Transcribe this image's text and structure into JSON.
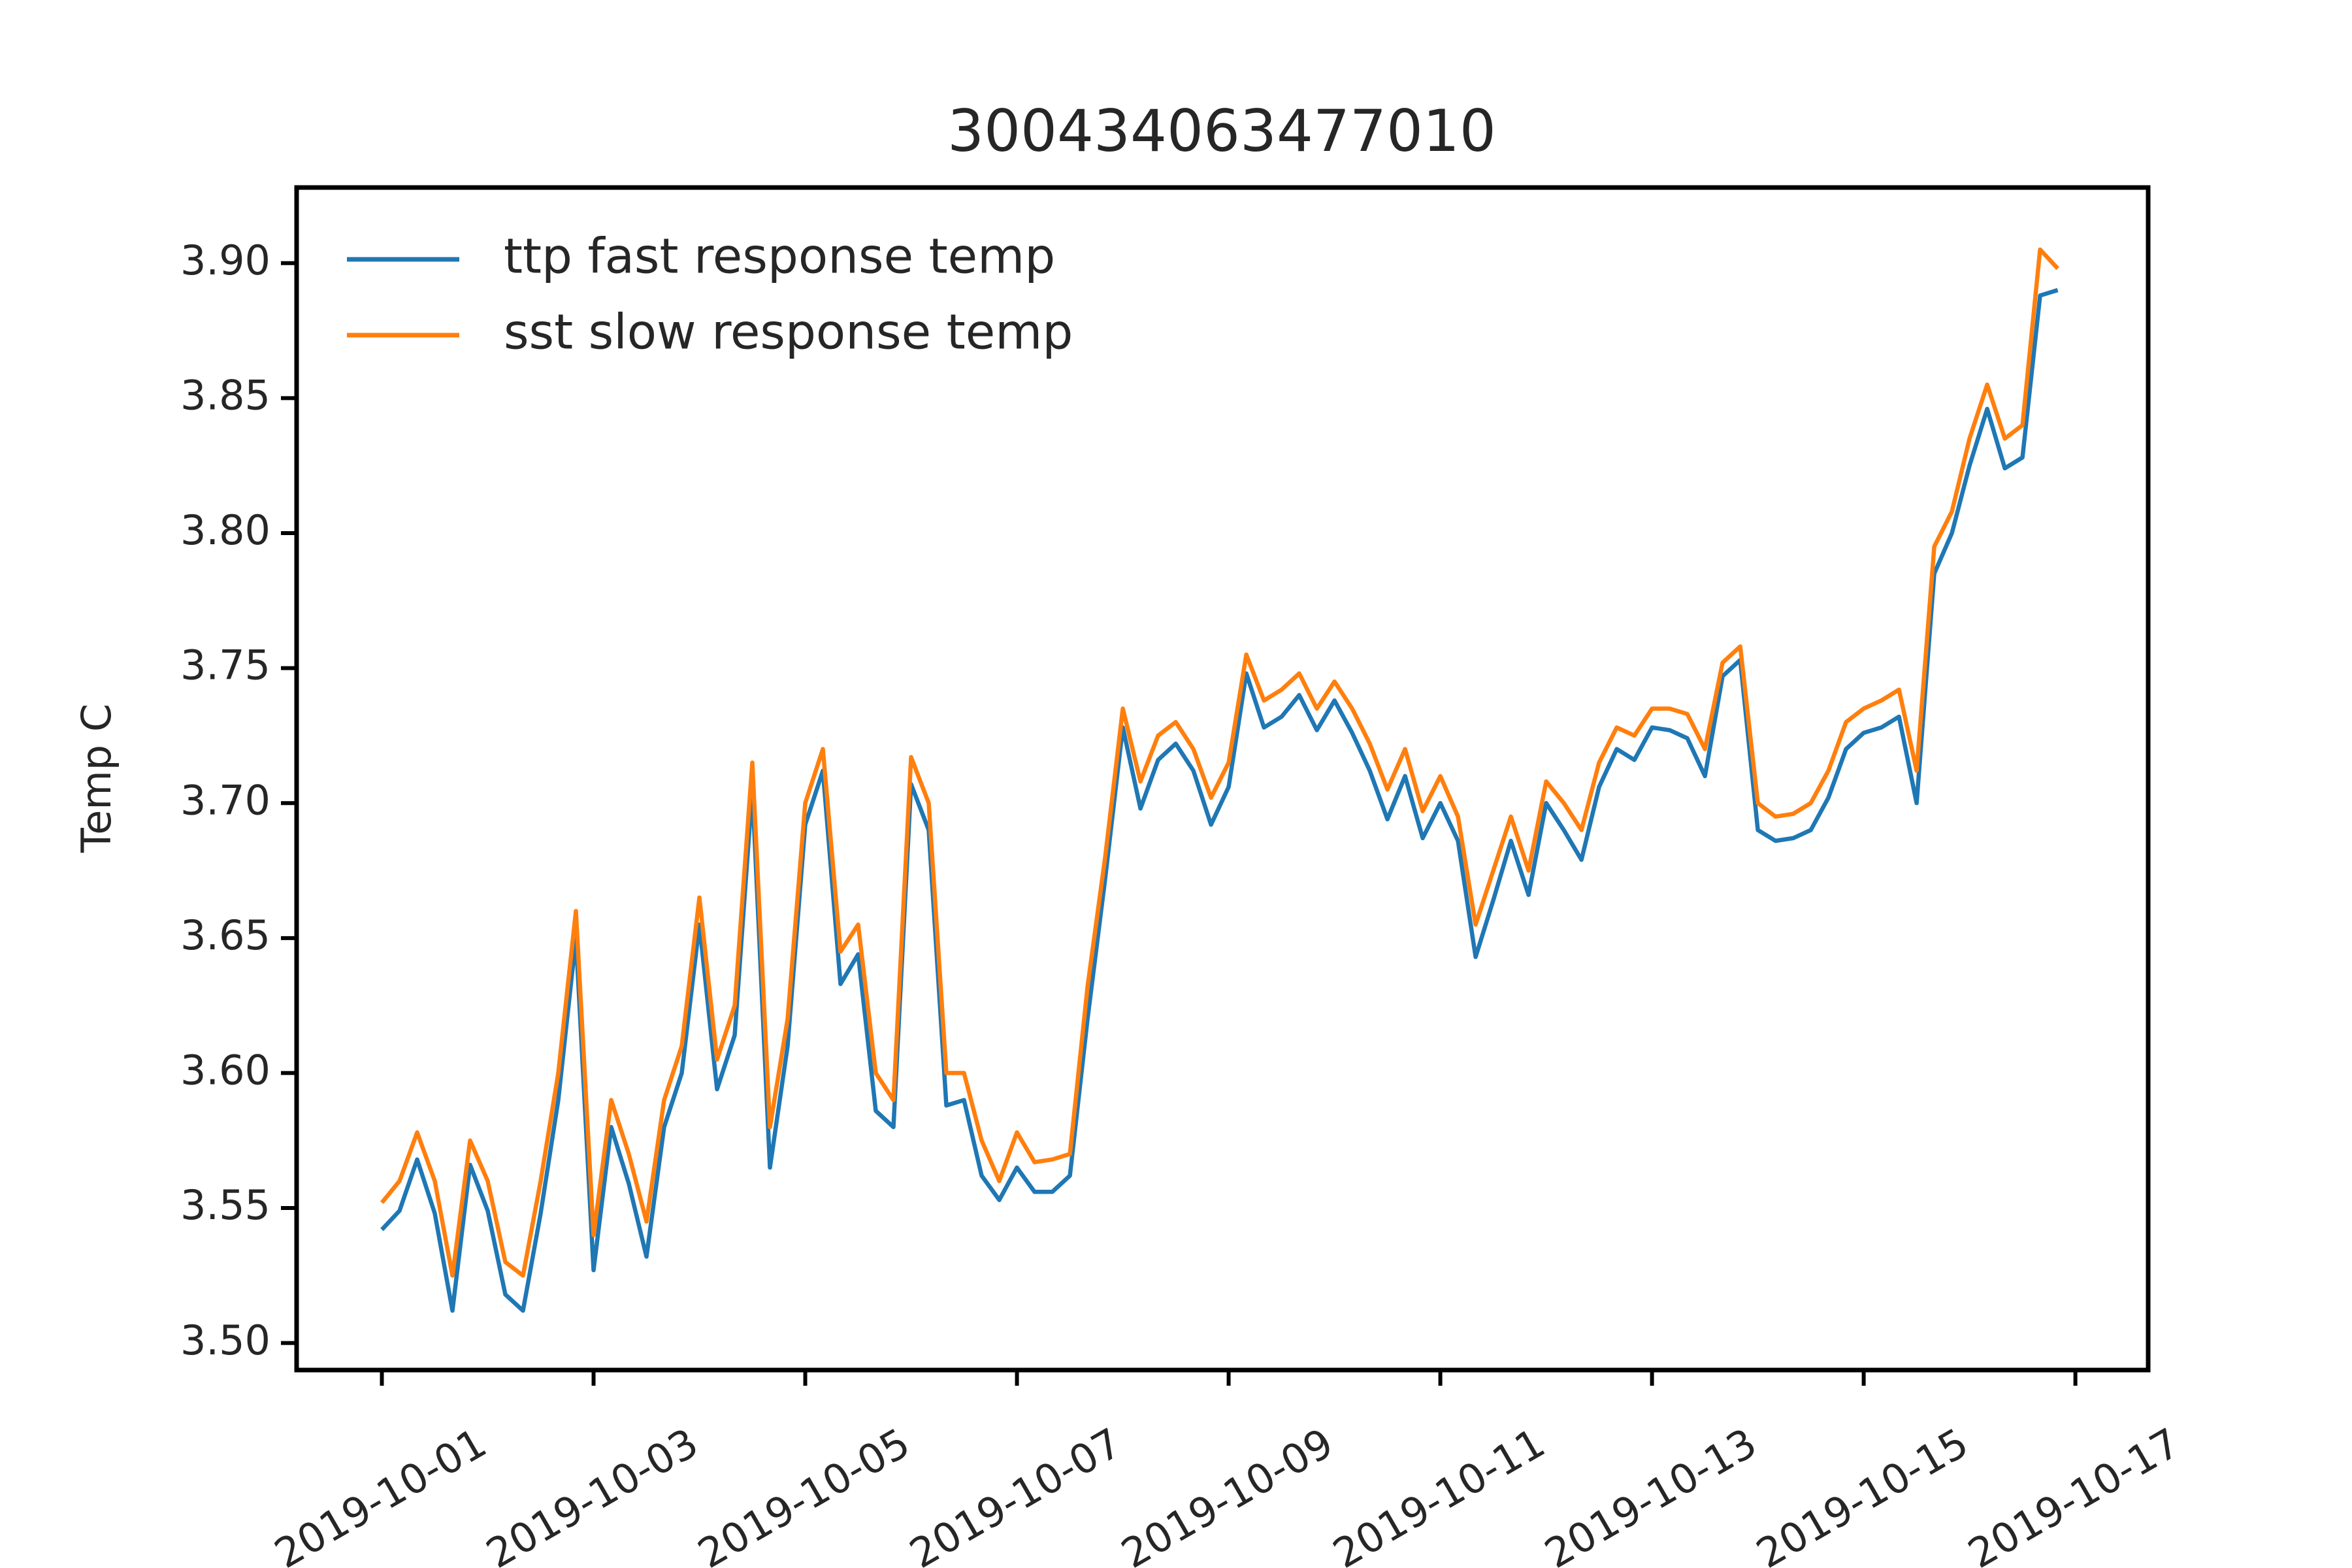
{
  "chart_data": {
    "type": "line",
    "title": "300434063477010",
    "y_label": "Temp C",
    "legend": "upper left",
    "x": [
      "2019-10-01T00:00",
      "2019-10-01T04:00",
      "2019-10-01T08:00",
      "2019-10-01T12:00",
      "2019-10-01T16:00",
      "2019-10-01T20:00",
      "2019-10-02T00:00",
      "2019-10-02T04:00",
      "2019-10-02T08:00",
      "2019-10-02T12:00",
      "2019-10-02T16:00",
      "2019-10-02T20:00",
      "2019-10-03T00:00",
      "2019-10-03T04:00",
      "2019-10-03T08:00",
      "2019-10-03T12:00",
      "2019-10-03T16:00",
      "2019-10-03T20:00",
      "2019-10-04T00:00",
      "2019-10-04T04:00",
      "2019-10-04T08:00",
      "2019-10-04T12:00",
      "2019-10-04T16:00",
      "2019-10-04T20:00",
      "2019-10-05T00:00",
      "2019-10-05T04:00",
      "2019-10-05T08:00",
      "2019-10-05T12:00",
      "2019-10-05T16:00",
      "2019-10-05T20:00",
      "2019-10-06T00:00",
      "2019-10-06T04:00",
      "2019-10-06T08:00",
      "2019-10-06T12:00",
      "2019-10-06T16:00",
      "2019-10-06T20:00",
      "2019-10-07T00:00",
      "2019-10-07T04:00",
      "2019-10-07T08:00",
      "2019-10-07T12:00",
      "2019-10-07T16:00",
      "2019-10-07T20:00",
      "2019-10-08T00:00",
      "2019-10-08T04:00",
      "2019-10-08T08:00",
      "2019-10-08T12:00",
      "2019-10-08T16:00",
      "2019-10-08T20:00",
      "2019-10-09T00:00",
      "2019-10-09T04:00",
      "2019-10-09T08:00",
      "2019-10-09T12:00",
      "2019-10-09T16:00",
      "2019-10-09T20:00",
      "2019-10-10T00:00",
      "2019-10-10T04:00",
      "2019-10-10T08:00",
      "2019-10-10T12:00",
      "2019-10-10T16:00",
      "2019-10-10T20:00",
      "2019-10-11T00:00",
      "2019-10-11T04:00",
      "2019-10-11T08:00",
      "2019-10-11T12:00",
      "2019-10-11T16:00",
      "2019-10-11T20:00",
      "2019-10-12T00:00",
      "2019-10-12T04:00",
      "2019-10-12T08:00",
      "2019-10-12T12:00",
      "2019-10-12T16:00",
      "2019-10-12T20:00",
      "2019-10-13T00:00",
      "2019-10-13T04:00",
      "2019-10-13T08:00",
      "2019-10-13T12:00",
      "2019-10-13T16:00",
      "2019-10-13T20:00",
      "2019-10-14T00:00",
      "2019-10-14T04:00",
      "2019-10-14T08:00",
      "2019-10-14T12:00",
      "2019-10-14T16:00",
      "2019-10-14T20:00",
      "2019-10-15T00:00",
      "2019-10-15T04:00",
      "2019-10-15T08:00",
      "2019-10-15T12:00",
      "2019-10-15T16:00",
      "2019-10-15T20:00",
      "2019-10-16T00:00",
      "2019-10-16T04:00",
      "2019-10-16T08:00",
      "2019-10-16T12:00",
      "2019-10-16T16:00",
      "2019-10-16T20:00"
    ],
    "series": [
      {
        "name": "ttp fast response temp",
        "color": "#1f77b4",
        "values": [
          3.542,
          3.549,
          3.568,
          3.548,
          3.512,
          3.566,
          3.549,
          3.518,
          3.512,
          3.548,
          3.59,
          3.65,
          3.527,
          3.58,
          3.559,
          3.532,
          3.58,
          3.6,
          3.655,
          3.594,
          3.614,
          3.705,
          3.565,
          3.61,
          3.692,
          3.712,
          3.633,
          3.644,
          3.586,
          3.58,
          3.707,
          3.69,
          3.588,
          3.59,
          3.562,
          3.553,
          3.565,
          3.556,
          3.556,
          3.562,
          3.62,
          3.672,
          3.728,
          3.698,
          3.716,
          3.722,
          3.712,
          3.692,
          3.706,
          3.748,
          3.728,
          3.732,
          3.74,
          3.727,
          3.738,
          3.726,
          3.712,
          3.694,
          3.71,
          3.687,
          3.7,
          3.686,
          3.643,
          3.664,
          3.686,
          3.666,
          3.7,
          3.69,
          3.679,
          3.706,
          3.72,
          3.716,
          3.728,
          3.727,
          3.724,
          3.71,
          3.747,
          3.753,
          3.69,
          3.686,
          3.687,
          3.69,
          3.702,
          3.72,
          3.726,
          3.728,
          3.732,
          3.7,
          3.785,
          3.8,
          3.825,
          3.846,
          3.824,
          3.828,
          3.888,
          3.89
        ]
      },
      {
        "name": "sst slow response temp",
        "color": "#ff7f0e",
        "values": [
          3.552,
          3.56,
          3.578,
          3.56,
          3.525,
          3.575,
          3.56,
          3.53,
          3.525,
          3.56,
          3.6,
          3.66,
          3.54,
          3.59,
          3.57,
          3.545,
          3.59,
          3.61,
          3.665,
          3.605,
          3.625,
          3.715,
          3.58,
          3.62,
          3.7,
          3.72,
          3.645,
          3.655,
          3.6,
          3.59,
          3.717,
          3.7,
          3.6,
          3.6,
          3.575,
          3.56,
          3.578,
          3.567,
          3.568,
          3.57,
          3.632,
          3.68,
          3.735,
          3.708,
          3.725,
          3.73,
          3.72,
          3.702,
          3.715,
          3.755,
          3.738,
          3.742,
          3.748,
          3.735,
          3.745,
          3.735,
          3.722,
          3.705,
          3.72,
          3.697,
          3.71,
          3.695,
          3.655,
          3.675,
          3.695,
          3.675,
          3.708,
          3.7,
          3.69,
          3.715,
          3.728,
          3.725,
          3.735,
          3.735,
          3.733,
          3.72,
          3.752,
          3.758,
          3.7,
          3.695,
          3.696,
          3.7,
          3.712,
          3.73,
          3.735,
          3.738,
          3.742,
          3.712,
          3.795,
          3.808,
          3.835,
          3.855,
          3.835,
          3.84,
          3.905,
          3.898
        ]
      }
    ],
    "xlim": [
      "2019-09-30T04:40",
      "2019-10-17T16:30"
    ],
    "xticks": [
      "2019-10-01",
      "2019-10-03",
      "2019-10-05",
      "2019-10-07",
      "2019-10-09",
      "2019-10-11",
      "2019-10-13",
      "2019-10-15",
      "2019-10-17"
    ],
    "ylim": [
      3.49,
      3.928
    ],
    "yticks": [
      {
        "value": 3.5,
        "label": "3.50"
      },
      3.55,
      {
        "value": 3.6,
        "label": "3.60"
      },
      3.65,
      {
        "value": 3.7,
        "label": "3.70"
      },
      3.75,
      {
        "value": 3.8,
        "label": "3.80"
      },
      3.85,
      {
        "value": 3.9,
        "label": "3.90"
      }
    ],
    "grid": false
  }
}
